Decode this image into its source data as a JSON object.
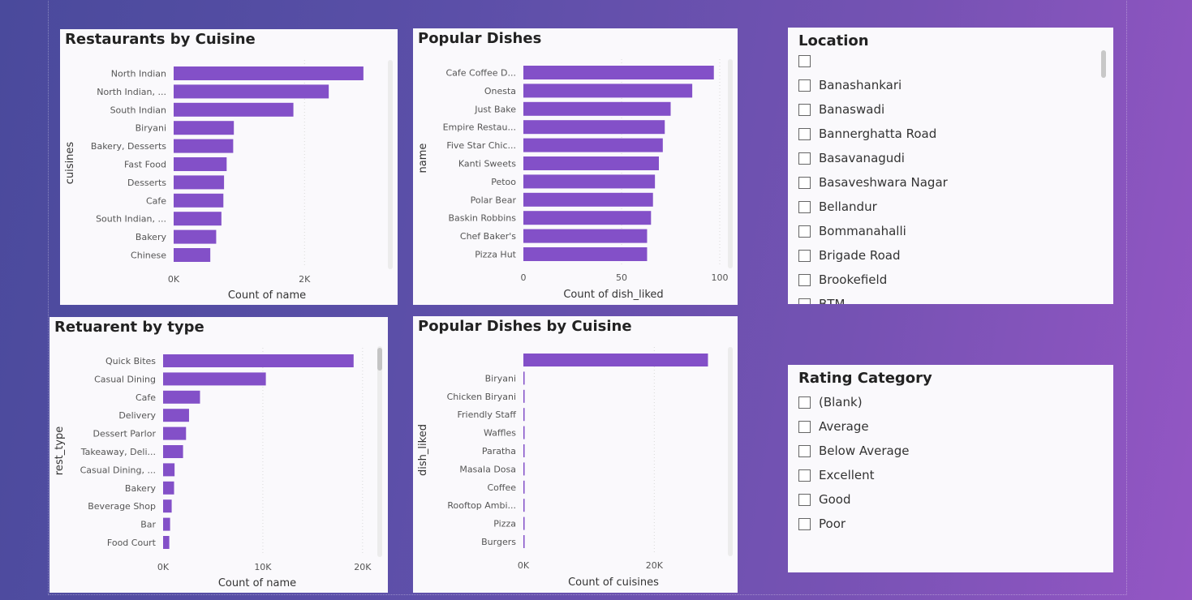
{
  "colors": {
    "bar": "#8350c8",
    "grid": "#d9d9d9",
    "text": "#555555"
  },
  "charts": {
    "cuisine": {
      "title": "Restaurants by Cuisine",
      "chart_data": {
        "type": "bar",
        "orientation": "horizontal",
        "title": "Restaurants by Cuisine",
        "xlabel": "Count of name",
        "ylabel": "cuisines",
        "xlim": [
          0,
          3100
        ],
        "xticks": [
          {
            "v": 0,
            "label": "0K"
          },
          {
            "v": 2000,
            "label": "2K"
          }
        ],
        "categories": [
          "North Indian",
          "North Indian, ...",
          "South Indian",
          "Biryani",
          "Bakery, Desserts",
          "Fast Food",
          "Desserts",
          "Cafe",
          "South Indian, ...",
          "Bakery",
          "Chinese"
        ],
        "values": [
          2900,
          2370,
          1830,
          920,
          910,
          810,
          770,
          760,
          730,
          650,
          560
        ]
      }
    },
    "dishes": {
      "title": "Popular Dishes",
      "chart_data": {
        "type": "bar",
        "orientation": "horizontal",
        "title": "Popular Dishes",
        "xlabel": "Count of dish_liked",
        "ylabel": "name",
        "xlim": [
          0,
          100
        ],
        "xticks": [
          {
            "v": 0,
            "label": "0"
          },
          {
            "v": 50,
            "label": "50"
          },
          {
            "v": 100,
            "label": "100"
          }
        ],
        "categories": [
          "Cafe Coffee D...",
          "Onesta",
          "Just Bake",
          "Empire Restau...",
          "Five Star Chic...",
          "Kanti Sweets",
          "Petoo",
          "Polar Bear",
          "Baskin Robbins",
          "Chef Baker's",
          "Pizza Hut"
        ],
        "values": [
          97,
          86,
          75,
          72,
          71,
          69,
          67,
          66,
          65,
          63,
          63
        ]
      }
    },
    "type": {
      "title": "Retuarent by type",
      "chart_data": {
        "type": "bar",
        "orientation": "horizontal",
        "title": "Retuarent by type",
        "xlabel": "Count of name",
        "ylabel": "rest_type",
        "xlim": [
          0,
          20500
        ],
        "xticks": [
          {
            "v": 0,
            "label": "0K"
          },
          {
            "v": 10000,
            "label": "10K"
          },
          {
            "v": 20000,
            "label": "20K"
          }
        ],
        "categories": [
          "Quick Bites",
          "Casual Dining",
          "Cafe",
          "Delivery",
          "Dessert Parlor",
          "Takeaway, Deli...",
          "Casual Dining, ...",
          "Bakery",
          "Beverage Shop",
          "Bar",
          "Food Court"
        ],
        "values": [
          19100,
          10300,
          3700,
          2600,
          2300,
          2000,
          1150,
          1100,
          860,
          700,
          620
        ]
      }
    },
    "dishcuisine": {
      "title": "Popular Dishes by Cuisine",
      "chart_data": {
        "type": "bar",
        "orientation": "horizontal",
        "title": "Popular Dishes by Cuisine",
        "xlabel": "Count of cuisines",
        "ylabel": "dish_liked",
        "xlim": [
          0,
          30000
        ],
        "xticks": [
          {
            "v": 0,
            "label": "0K"
          },
          {
            "v": 20000,
            "label": "20K"
          }
        ],
        "categories": [
          "",
          "Biryani",
          "Chicken Biryani",
          "Friendly Staff",
          "Waffles",
          "Paratha",
          "Masala Dosa",
          "Coffee",
          "Rooftop Ambi...",
          "Pizza",
          "Burgers"
        ],
        "values": [
          28200,
          180,
          150,
          130,
          120,
          110,
          105,
          100,
          95,
          90,
          85
        ]
      }
    }
  },
  "slicers": {
    "location": {
      "title": "Location",
      "items": [
        "",
        "Banashankari",
        "Banaswadi",
        "Bannerghatta Road",
        "Basavanagudi",
        "Basaveshwara Nagar",
        "Bellandur",
        "Bommanahalli",
        "Brigade Road",
        "Brookefield"
      ],
      "partial_item": "BTM"
    },
    "rating": {
      "title": "Rating Category",
      "items": [
        "(Blank)",
        "Average",
        "Below Average",
        "Excellent",
        "Good",
        "Poor"
      ]
    }
  }
}
